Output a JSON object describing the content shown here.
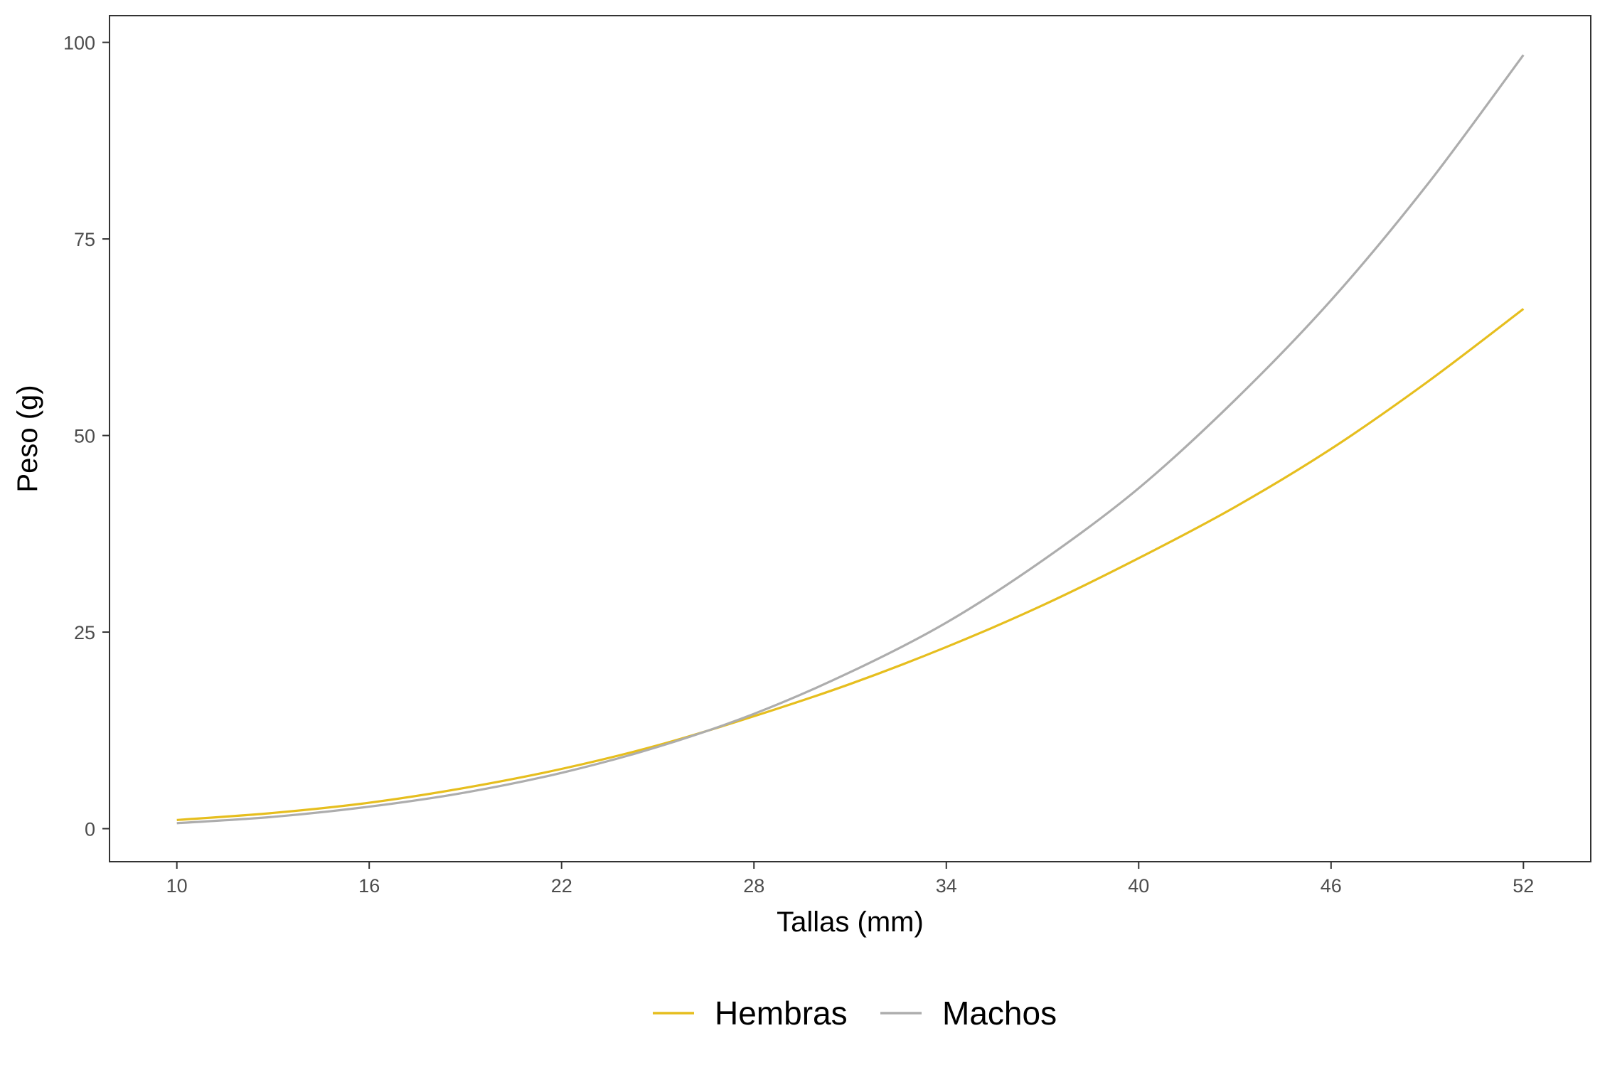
{
  "chart_data": {
    "type": "line",
    "title": "",
    "xlabel": "Tallas (mm)",
    "ylabel": "Peso (g)",
    "xlim": [
      7.9,
      54.1
    ],
    "ylim": [
      -4.2,
      103.4
    ],
    "x_ticks": [
      10,
      16,
      22,
      28,
      34,
      40,
      46,
      52
    ],
    "y_ticks": [
      0,
      25,
      50,
      75,
      100
    ],
    "grid": false,
    "legend_position": "bottom",
    "x": [
      10,
      13,
      16,
      19,
      22,
      25,
      28,
      31,
      34,
      37,
      40,
      43,
      46,
      49,
      52
    ],
    "series": [
      {
        "name": "Hembras",
        "color": "#E6BE1E",
        "values": [
          1.1,
          2.0,
          3.3,
          5.2,
          7.6,
          10.6,
          14.3,
          18.4,
          23.1,
          28.4,
          34.4,
          40.9,
          48.3,
          56.8,
          66.1
        ]
      },
      {
        "name": "Machos",
        "color": "#ADADAD",
        "values": [
          0.7,
          1.5,
          2.8,
          4.6,
          7.1,
          10.4,
          14.6,
          19.9,
          26.2,
          34.1,
          43.3,
          54.5,
          67.2,
          81.9,
          98.4
        ]
      }
    ]
  }
}
